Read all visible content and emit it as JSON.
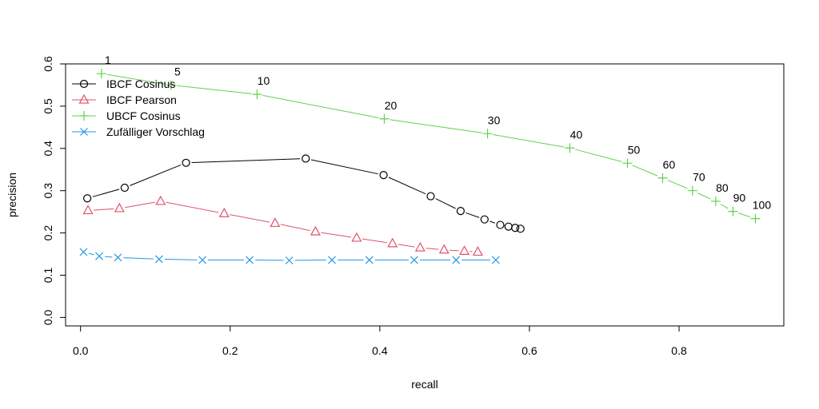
{
  "chart_data": {
    "type": "line",
    "title": "",
    "xlabel": "recall",
    "ylabel": "precision",
    "xlim": [
      -0.02,
      0.94
    ],
    "ylim": [
      -0.02,
      0.6
    ],
    "x_ticks": [
      "0.0",
      "0.2",
      "0.4",
      "0.6",
      "0.8"
    ],
    "x_tick_values": [
      0.0,
      0.2,
      0.4,
      0.6,
      0.8
    ],
    "y_ticks": [
      "0.0",
      "0.1",
      "0.2",
      "0.3",
      "0.4",
      "0.5",
      "0.6"
    ],
    "y_tick_values": [
      0.0,
      0.1,
      0.2,
      0.3,
      0.4,
      0.5,
      0.6
    ],
    "grid": false,
    "legend_position": "top-left",
    "series": [
      {
        "name": "IBCF Cosinus",
        "color": "#000000",
        "marker": "circle",
        "x": [
          0.009,
          0.059,
          0.141,
          0.301,
          0.405,
          0.468,
          0.508,
          0.54,
          0.561,
          0.572,
          0.581,
          0.588
        ],
        "y": [
          0.282,
          0.307,
          0.366,
          0.376,
          0.337,
          0.287,
          0.252,
          0.232,
          0.219,
          0.215,
          0.212,
          0.21
        ]
      },
      {
        "name": "IBCF Pearson",
        "color": "#DF536B",
        "marker": "triangle",
        "x": [
          0.01,
          0.052,
          0.107,
          0.192,
          0.26,
          0.314,
          0.369,
          0.417,
          0.454,
          0.486,
          0.513,
          0.531
        ],
        "y": [
          0.253,
          0.258,
          0.275,
          0.246,
          0.223,
          0.203,
          0.188,
          0.175,
          0.165,
          0.16,
          0.157,
          0.155
        ]
      },
      {
        "name": "UBCF Cosinus",
        "color": "#61D04F",
        "marker": "plus",
        "x": [
          0.028,
          0.121,
          0.236,
          0.406,
          0.544,
          0.654,
          0.731,
          0.778,
          0.818,
          0.849,
          0.872,
          0.902
        ],
        "y": [
          0.577,
          0.55,
          0.528,
          0.47,
          0.435,
          0.401,
          0.365,
          0.33,
          0.3,
          0.275,
          0.251,
          0.234
        ],
        "point_labels": [
          "1",
          "5",
          "10",
          "20",
          "30",
          "40",
          "50",
          "60",
          "70",
          "80",
          "90",
          "100"
        ]
      },
      {
        "name": "Zufälliger Vorschlag",
        "color": "#2297E6",
        "marker": "x",
        "x": [
          0.004,
          0.025,
          0.05,
          0.105,
          0.163,
          0.226,
          0.279,
          0.336,
          0.386,
          0.446,
          0.502,
          0.555
        ],
        "y": [
          0.155,
          0.145,
          0.142,
          0.138,
          0.136,
          0.136,
          0.135,
          0.136,
          0.136,
          0.136,
          0.136,
          0.136
        ]
      }
    ]
  }
}
